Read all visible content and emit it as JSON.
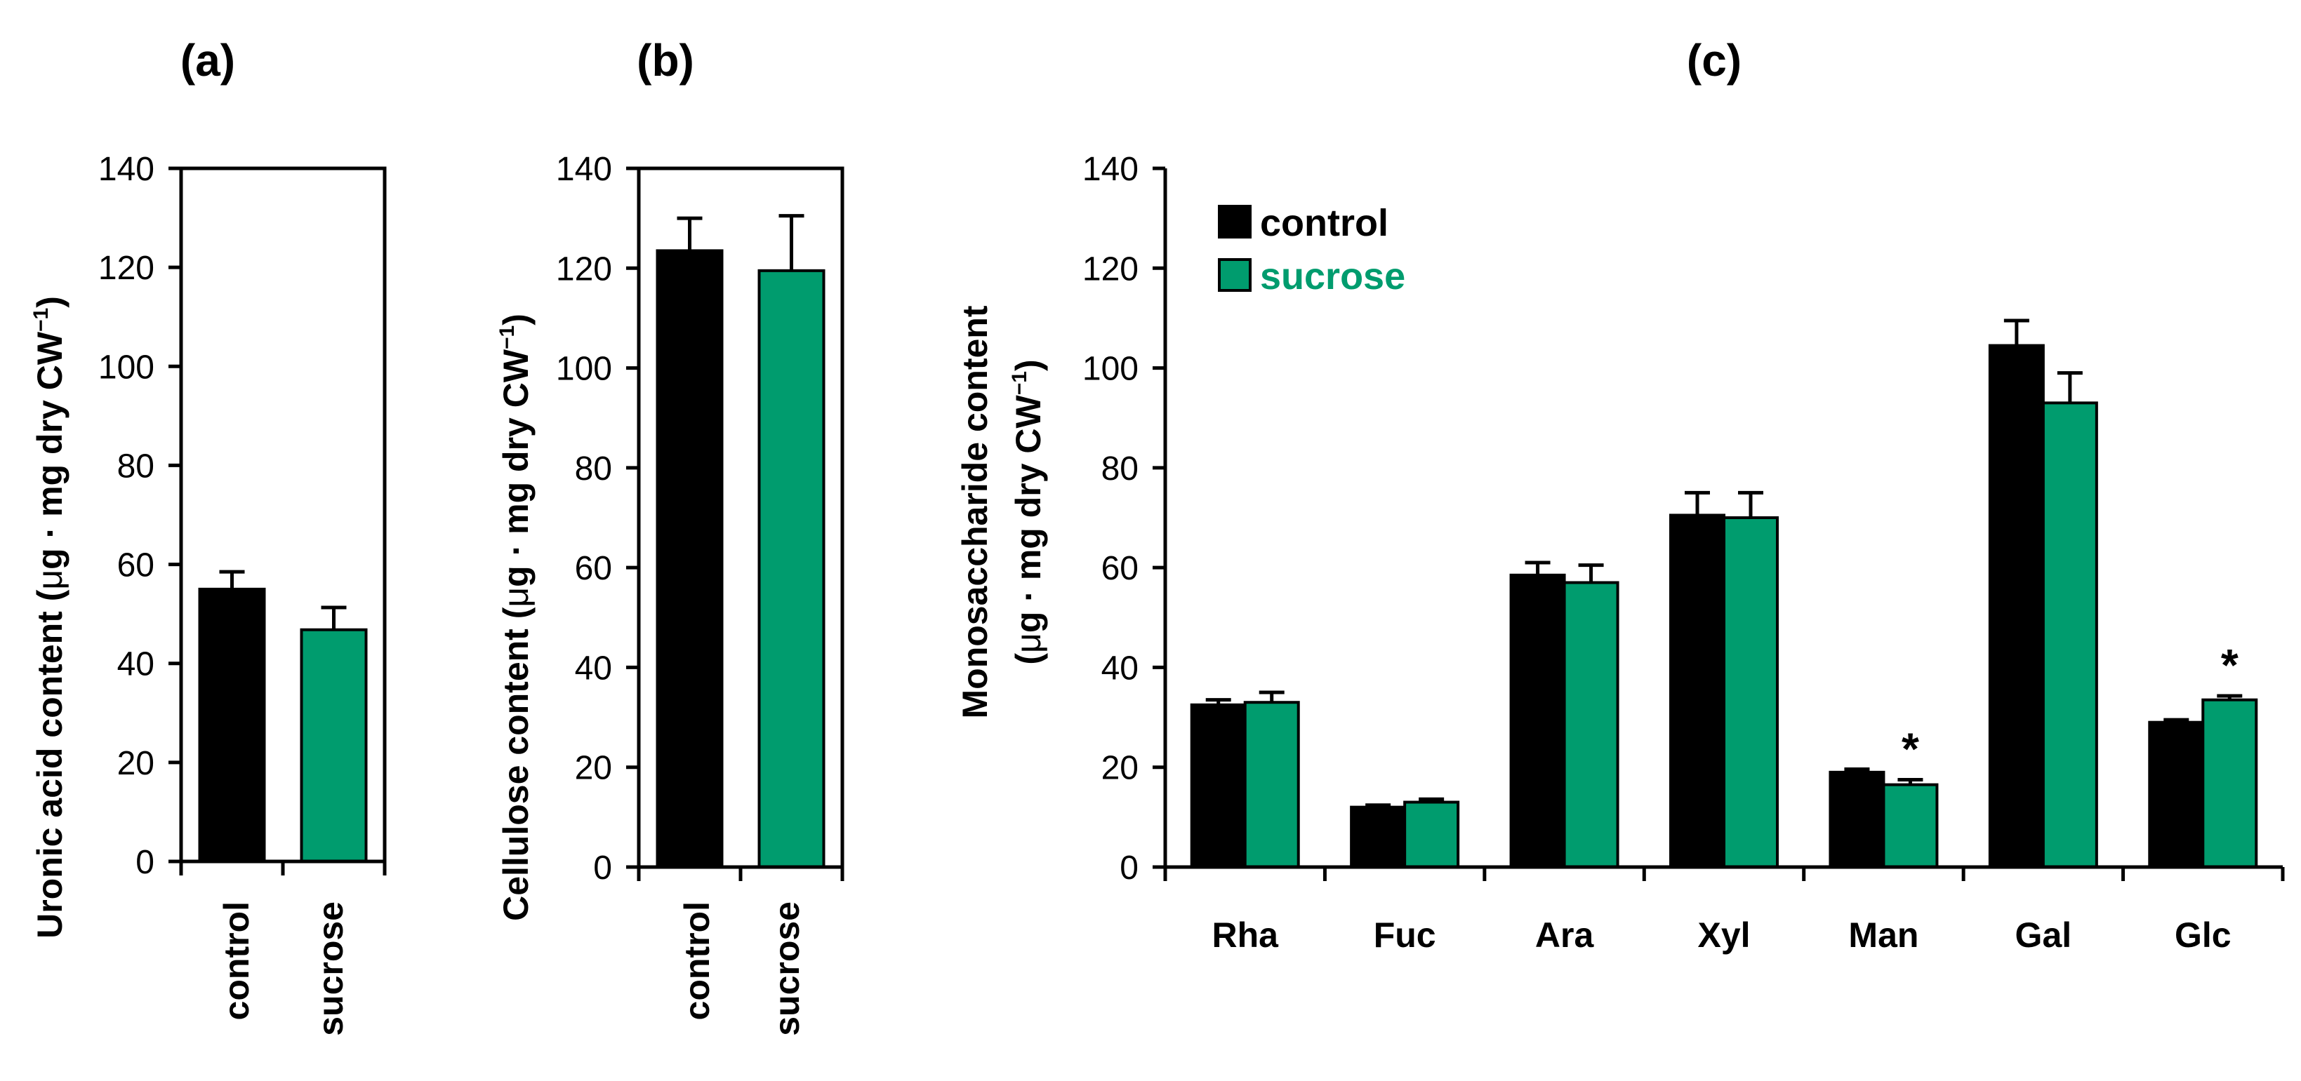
{
  "colors": {
    "control": "#000000",
    "sucrose": "#009c6e",
    "axis": "#000000"
  },
  "legend": {
    "control": "control",
    "sucrose": "sucrose"
  },
  "chart_data": [
    {
      "id": "a",
      "panel_label": "(a)",
      "type": "bar",
      "ylabel_main": "Uronic acid content (",
      "ylabel_mu": "μ",
      "ylabel_rest": "g · mg dry CW",
      "ylabel_sup": "−1",
      "ylabel_close": ")",
      "ylim": [
        0,
        140
      ],
      "yticks": [
        "0",
        "20",
        "40",
        "60",
        "80",
        "100",
        "120",
        "140"
      ],
      "categories": [
        "control",
        "sucrose"
      ],
      "series": [
        {
          "key": "control",
          "values": [
            55.0,
            null
          ],
          "errors": [
            3.5,
            null
          ]
        },
        {
          "key": "sucrose",
          "values": [
            null,
            46.8
          ],
          "errors": [
            null,
            4.5
          ]
        }
      ]
    },
    {
      "id": "b",
      "panel_label": "(b)",
      "type": "bar",
      "ylabel_main": "Cellulose content (",
      "ylabel_mu": "μ",
      "ylabel_rest": "g · mg dry CW",
      "ylabel_sup": "−1",
      "ylabel_close": ")",
      "ylim": [
        0,
        140
      ],
      "yticks": [
        "0",
        "20",
        "40",
        "60",
        "80",
        "100",
        "120",
        "140"
      ],
      "categories": [
        "control",
        "sucrose"
      ],
      "series": [
        {
          "key": "control",
          "values": [
            123.5,
            null
          ],
          "errors": [
            6.5,
            null
          ]
        },
        {
          "key": "sucrose",
          "values": [
            null,
            119.5
          ],
          "errors": [
            null,
            11.0
          ]
        }
      ]
    },
    {
      "id": "c",
      "panel_label": "(c)",
      "type": "bar",
      "ylabel_line1": "Monosaccharide content",
      "ylabel_main": "(",
      "ylabel_mu": "μ",
      "ylabel_rest": "g · mg dry CW",
      "ylabel_sup": "−1",
      "ylabel_close": ")",
      "ylim": [
        0,
        140
      ],
      "yticks": [
        "0",
        "20",
        "40",
        "60",
        "80",
        "100",
        "120",
        "140"
      ],
      "categories": [
        "Rha",
        "Fuc",
        "Ara",
        "Xyl",
        "Man",
        "Gal",
        "Glc"
      ],
      "series": [
        {
          "key": "control",
          "name": "control",
          "values": [
            32.5,
            12.0,
            58.5,
            70.5,
            19.0,
            104.5,
            29.0
          ],
          "errors": [
            1.0,
            0.4,
            2.5,
            4.5,
            0.6,
            5.0,
            0.5
          ]
        },
        {
          "key": "sucrose",
          "name": "sucrose",
          "values": [
            33.0,
            13.0,
            57.0,
            70.0,
            16.5,
            93.0,
            33.5
          ],
          "errors": [
            2.0,
            0.6,
            3.5,
            5.0,
            1.0,
            6.0,
            0.8
          ]
        }
      ],
      "annotations": [
        {
          "category": "Man",
          "series": "sucrose",
          "text": "*"
        },
        {
          "category": "Glc",
          "series": "sucrose",
          "text": "*"
        }
      ],
      "legend_position": "top-left"
    }
  ]
}
